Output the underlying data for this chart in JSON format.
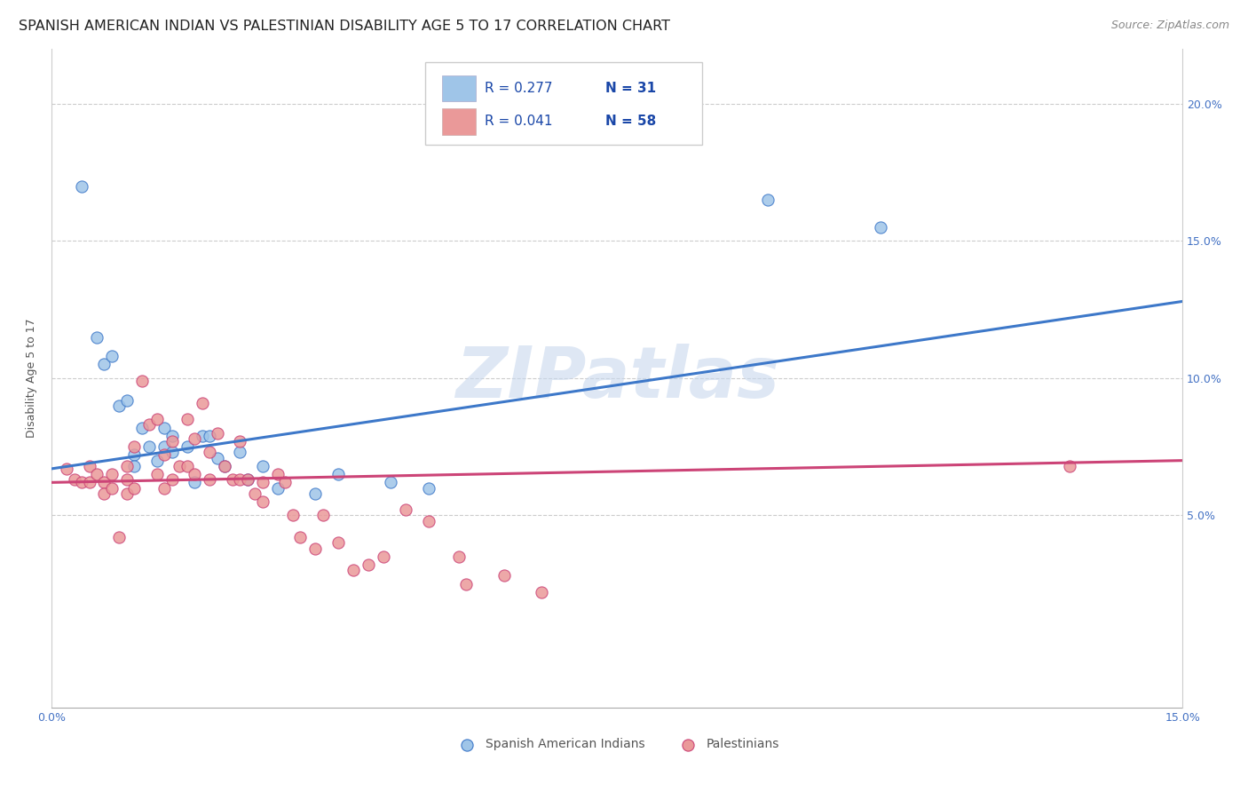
{
  "title": "SPANISH AMERICAN INDIAN VS PALESTINIAN DISABILITY AGE 5 TO 17 CORRELATION CHART",
  "source": "Source: ZipAtlas.com",
  "ylabel": "Disability Age 5 to 17",
  "ytick_vals": [
    0.05,
    0.1,
    0.15,
    0.2
  ],
  "ytick_labels": [
    "5.0%",
    "10.0%",
    "15.0%",
    "20.0%"
  ],
  "xtick_vals": [
    0.0,
    0.025,
    0.05,
    0.075,
    0.1,
    0.125,
    0.15
  ],
  "xlim": [
    0.0,
    0.15
  ],
  "ylim": [
    -0.02,
    0.22
  ],
  "watermark": "ZIPatlas",
  "legend_r1": "R = 0.277",
  "legend_n1": "N = 31",
  "legend_r2": "R = 0.041",
  "legend_n2": "N = 58",
  "blue_color": "#9fc5e8",
  "pink_color": "#ea9999",
  "line_blue": "#3d78c9",
  "line_pink": "#cc4477",
  "blue_scatter_x": [
    0.004,
    0.006,
    0.007,
    0.008,
    0.009,
    0.01,
    0.011,
    0.011,
    0.012,
    0.013,
    0.014,
    0.015,
    0.015,
    0.016,
    0.016,
    0.018,
    0.019,
    0.02,
    0.021,
    0.022,
    0.023,
    0.025,
    0.026,
    0.028,
    0.03,
    0.035,
    0.038,
    0.045,
    0.05,
    0.095,
    0.11
  ],
  "blue_scatter_y": [
    0.17,
    0.115,
    0.105,
    0.108,
    0.09,
    0.092,
    0.072,
    0.068,
    0.082,
    0.075,
    0.07,
    0.082,
    0.075,
    0.079,
    0.073,
    0.075,
    0.062,
    0.079,
    0.079,
    0.071,
    0.068,
    0.073,
    0.063,
    0.068,
    0.06,
    0.058,
    0.065,
    0.062,
    0.06,
    0.165,
    0.155
  ],
  "pink_scatter_x": [
    0.002,
    0.003,
    0.004,
    0.005,
    0.005,
    0.006,
    0.007,
    0.007,
    0.008,
    0.008,
    0.009,
    0.01,
    0.01,
    0.01,
    0.011,
    0.011,
    0.012,
    0.013,
    0.014,
    0.014,
    0.015,
    0.015,
    0.016,
    0.016,
    0.017,
    0.018,
    0.018,
    0.019,
    0.019,
    0.02,
    0.021,
    0.021,
    0.022,
    0.023,
    0.024,
    0.025,
    0.025,
    0.026,
    0.027,
    0.028,
    0.028,
    0.03,
    0.031,
    0.032,
    0.033,
    0.035,
    0.036,
    0.038,
    0.04,
    0.042,
    0.044,
    0.047,
    0.05,
    0.054,
    0.055,
    0.06,
    0.065,
    0.135
  ],
  "pink_scatter_y": [
    0.067,
    0.063,
    0.062,
    0.068,
    0.062,
    0.065,
    0.062,
    0.058,
    0.065,
    0.06,
    0.042,
    0.068,
    0.063,
    0.058,
    0.075,
    0.06,
    0.099,
    0.083,
    0.085,
    0.065,
    0.072,
    0.06,
    0.077,
    0.063,
    0.068,
    0.085,
    0.068,
    0.078,
    0.065,
    0.091,
    0.073,
    0.063,
    0.08,
    0.068,
    0.063,
    0.077,
    0.063,
    0.063,
    0.058,
    0.062,
    0.055,
    0.065,
    0.062,
    0.05,
    0.042,
    0.038,
    0.05,
    0.04,
    0.03,
    0.032,
    0.035,
    0.052,
    0.048,
    0.035,
    0.025,
    0.028,
    0.022,
    0.068
  ],
  "blue_line_x": [
    0.0,
    0.15
  ],
  "blue_line_y": [
    0.067,
    0.128
  ],
  "pink_line_x": [
    0.0,
    0.15
  ],
  "pink_line_y": [
    0.062,
    0.07
  ],
  "title_fontsize": 11.5,
  "source_fontsize": 9,
  "axis_label_fontsize": 9,
  "tick_fontsize": 9,
  "legend_fontsize": 11
}
